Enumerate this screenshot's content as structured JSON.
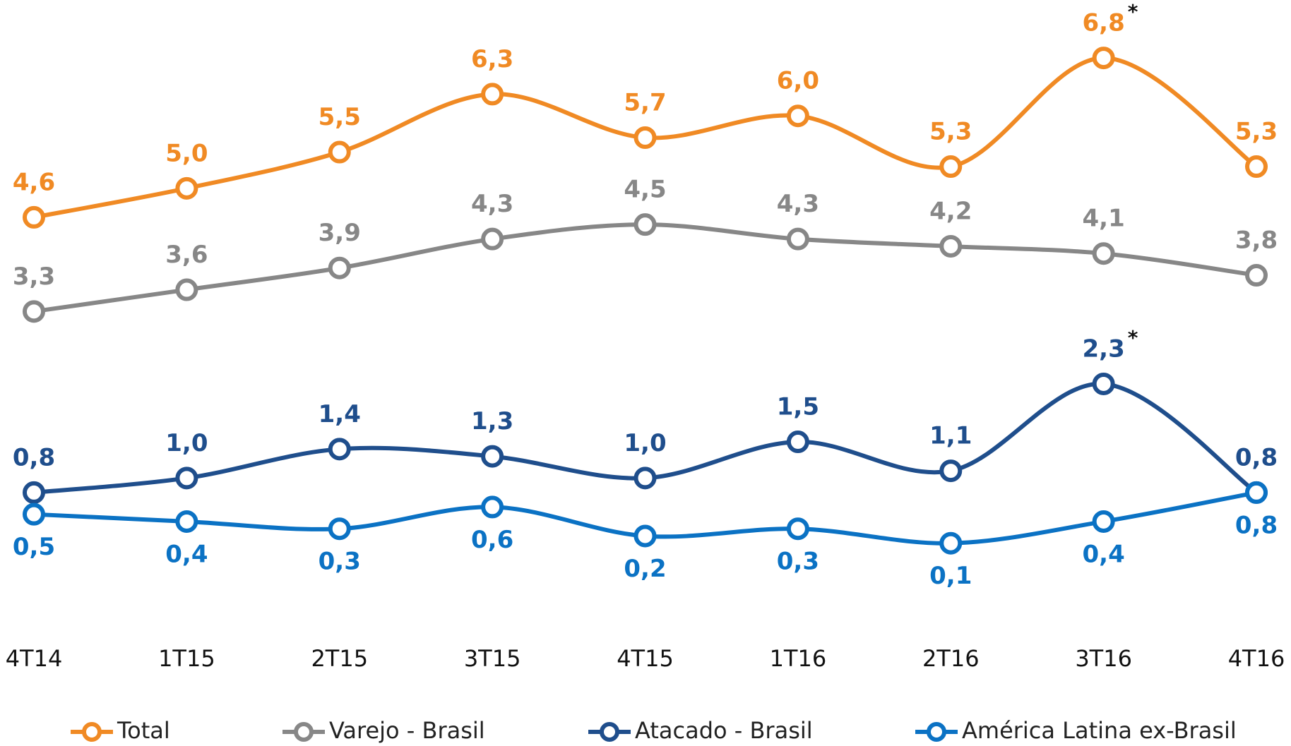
{
  "chart_data": {
    "type": "line",
    "categories": [
      "4T14",
      "1T15",
      "2T15",
      "3T15",
      "4T15",
      "1T16",
      "2T16",
      "3T16",
      "4T16"
    ],
    "ylim": [
      0,
      7.6
    ],
    "label_position": [
      "above",
      "above",
      "above",
      "below"
    ],
    "series": [
      {
        "name": "Total",
        "color": "#f08a24",
        "values": [
          4.6,
          5.0,
          5.5,
          6.3,
          5.7,
          6.0,
          5.3,
          6.8,
          5.3
        ],
        "value_labels": [
          "4,6",
          "5,0",
          "5,5",
          "6,3",
          "5,7",
          "6,0",
          "5,3",
          "6,8",
          "5,3"
        ]
      },
      {
        "name": "Varejo - Brasil",
        "color": "#878787",
        "values": [
          3.3,
          3.6,
          3.9,
          4.3,
          4.5,
          4.3,
          4.2,
          4.1,
          3.8
        ],
        "value_labels": [
          "3,3",
          "3,6",
          "3,9",
          "4,3",
          "4,5",
          "4,3",
          "4,2",
          "4,1",
          "3,8"
        ]
      },
      {
        "name": "Atacado - Brasil",
        "color": "#1f4e8c",
        "values": [
          0.8,
          1.0,
          1.4,
          1.3,
          1.0,
          1.5,
          1.1,
          2.3,
          0.8
        ],
        "value_labels": [
          "0,8",
          "1,0",
          "1,4",
          "1,3",
          "1,0",
          "1,5",
          "1,1",
          "2,3",
          "0,8"
        ]
      },
      {
        "name": "América Latina ex-Brasil",
        "color": "#0b72c4",
        "values": [
          0.5,
          0.4,
          0.3,
          0.6,
          0.2,
          0.3,
          0.1,
          0.4,
          0.8
        ],
        "value_labels": [
          "0,5",
          "0,4",
          "0,3",
          "0,6",
          "0,2",
          "0,3",
          "0,1",
          "0,4",
          "0,8"
        ]
      }
    ],
    "annotations": [
      {
        "text": "*",
        "series": "Total",
        "category": "3T16"
      },
      {
        "text": "*",
        "series": "Atacado - Brasil",
        "category": "3T16"
      }
    ]
  }
}
